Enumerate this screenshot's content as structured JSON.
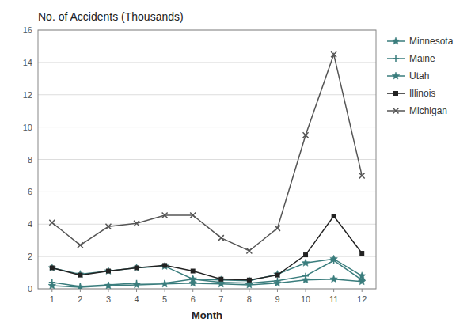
{
  "chart_data": {
    "type": "line",
    "title": "No. of Accidents (Thousands)",
    "xlabel": "Month",
    "x": [
      1,
      2,
      3,
      4,
      5,
      6,
      7,
      8,
      9,
      10,
      11,
      12
    ],
    "xlim": [
      0.5,
      12.5
    ],
    "xticks": [
      1,
      2,
      3,
      4,
      5,
      6,
      7,
      8,
      9,
      10,
      11,
      12
    ],
    "ylim": [
      0,
      16
    ],
    "yticks": [
      0,
      2,
      4,
      6,
      8,
      10,
      12,
      14,
      16
    ],
    "grid": true,
    "legend": "right",
    "series": [
      {
        "name": "Minnesota",
        "color": "#3a7d7d",
        "marker": "star",
        "values": [
          1.3,
          0.9,
          1.1,
          1.3,
          1.4,
          0.6,
          0.55,
          0.5,
          0.9,
          1.6,
          1.85,
          0.8
        ]
      },
      {
        "name": "Maine",
        "color": "#3a7d7d",
        "marker": "plus",
        "values": [
          0.4,
          0.15,
          0.25,
          0.35,
          0.35,
          0.6,
          0.4,
          0.35,
          0.5,
          0.8,
          1.75,
          0.55
        ]
      },
      {
        "name": "Utah",
        "color": "#3a7d7d",
        "marker": "star",
        "values": [
          0.2,
          0.1,
          0.2,
          0.25,
          0.3,
          0.35,
          0.3,
          0.25,
          0.35,
          0.55,
          0.6,
          0.45
        ]
      },
      {
        "name": "Illinois",
        "color": "#222222",
        "marker": "square",
        "values": [
          1.3,
          0.85,
          1.1,
          1.3,
          1.45,
          1.1,
          0.6,
          0.55,
          0.85,
          2.1,
          4.5,
          2.2
        ]
      },
      {
        "name": "Michigan",
        "color": "#555555",
        "marker": "x",
        "values": [
          4.1,
          2.7,
          3.85,
          4.05,
          4.55,
          4.55,
          3.15,
          2.35,
          3.75,
          9.5,
          14.5,
          7.0
        ]
      }
    ]
  }
}
